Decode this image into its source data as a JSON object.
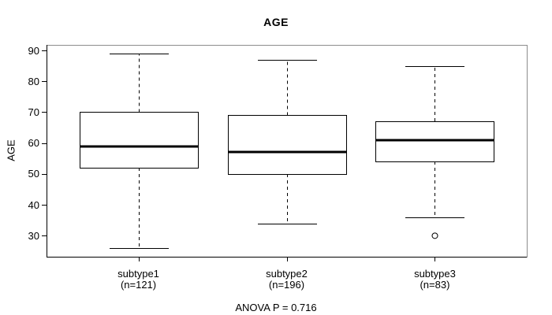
{
  "chart_data": {
    "type": "boxplot",
    "title": "AGE",
    "ylabel": "AGE",
    "xlabel": "",
    "annotation": "ANOVA P = 0.716",
    "yticks": [
      30,
      40,
      50,
      60,
      70,
      80,
      90
    ],
    "ylim": [
      23.2,
      91.8
    ],
    "xlim": [
      0.38,
      3.62
    ],
    "box_width_units": 0.8,
    "cap_width_units": 0.4,
    "grid": "off",
    "groups": [
      {
        "label": "subtype1",
        "sub_label": "(n=121)",
        "n": 121,
        "lower_whisker": 26,
        "q1": 52,
        "median": 59,
        "q3": 70,
        "upper_whisker": 89,
        "outliers": []
      },
      {
        "label": "subtype2",
        "sub_label": "(n=196)",
        "n": 196,
        "lower_whisker": 34,
        "q1": 50,
        "median": 57,
        "q3": 69,
        "upper_whisker": 87,
        "outliers": []
      },
      {
        "label": "subtype3",
        "sub_label": "(n=83)",
        "n": 83,
        "lower_whisker": 36,
        "q1": 54,
        "median": 61,
        "q3": 67,
        "upper_whisker": 85,
        "outliers": [
          30
        ]
      }
    ]
  },
  "colors": {
    "line": "#000000",
    "frame": "#8c8c8c",
    "background": "#ffffff",
    "box_fill": "#ffffff"
  }
}
